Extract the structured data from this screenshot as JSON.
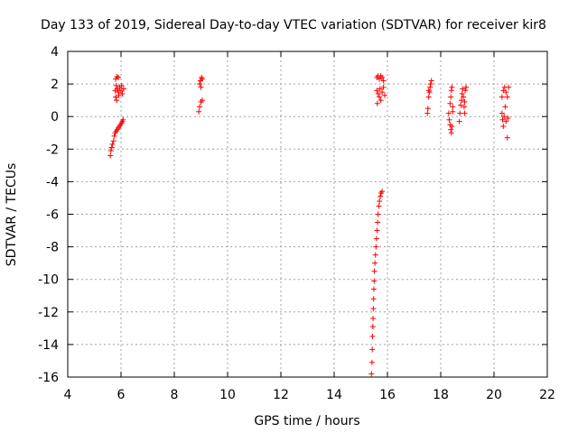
{
  "chart_data": {
    "type": "scatter",
    "title": "Day 133 of 2019, Sidereal Day-to-day VTEC variation (SDTVAR) for receiver kir8",
    "xlabel": "GPS time / hours",
    "ylabel": "SDTVAR / TECUs",
    "xlim": [
      4,
      22
    ],
    "ylim": [
      -16,
      4
    ],
    "xticks": [
      4,
      6,
      8,
      10,
      12,
      14,
      16,
      18,
      20,
      22
    ],
    "yticks": [
      -16,
      -14,
      -12,
      -10,
      -8,
      -6,
      -4,
      -2,
      0,
      2,
      4
    ],
    "grid": true,
    "marker": "+",
    "color": "#ff0000",
    "series": [
      {
        "name": "SDTVAR",
        "points": [
          [
            5.6,
            -2.4
          ],
          [
            5.62,
            -2.1
          ],
          [
            5.65,
            -1.9
          ],
          [
            5.68,
            -1.7
          ],
          [
            5.72,
            -1.5
          ],
          [
            5.75,
            -1.2
          ],
          [
            5.78,
            -1.0
          ],
          [
            5.82,
            -0.9
          ],
          [
            5.86,
            -0.8
          ],
          [
            5.9,
            -0.7
          ],
          [
            5.94,
            -0.6
          ],
          [
            5.98,
            -0.5
          ],
          [
            6.02,
            -0.4
          ],
          [
            6.05,
            -0.3
          ],
          [
            6.08,
            -0.2
          ],
          [
            5.8,
            2.3
          ],
          [
            5.85,
            2.45
          ],
          [
            5.9,
            2.4
          ],
          [
            5.82,
            1.9
          ],
          [
            5.86,
            1.7
          ],
          [
            5.9,
            1.5
          ],
          [
            5.8,
            1.2
          ],
          [
            5.83,
            1.0
          ],
          [
            5.95,
            1.8
          ],
          [
            6.0,
            1.6
          ],
          [
            6.05,
            1.4
          ],
          [
            6.1,
            1.7
          ],
          [
            5.78,
            1.6
          ],
          [
            5.92,
            1.3
          ],
          [
            6.02,
            1.9
          ],
          [
            8.95,
            2.0
          ],
          [
            8.98,
            2.2
          ],
          [
            9.02,
            2.4
          ],
          [
            9.05,
            2.3
          ],
          [
            9.0,
            1.8
          ],
          [
            8.92,
            0.3
          ],
          [
            8.95,
            0.6
          ],
          [
            9.0,
            0.9
          ],
          [
            9.05,
            1.0
          ],
          [
            15.4,
            -15.8
          ],
          [
            15.42,
            -15.1
          ],
          [
            15.43,
            -14.3
          ],
          [
            15.44,
            -13.5
          ],
          [
            15.45,
            -12.9
          ],
          [
            15.46,
            -12.4
          ],
          [
            15.47,
            -11.8
          ],
          [
            15.48,
            -11.2
          ],
          [
            15.49,
            -10.6
          ],
          [
            15.5,
            -10.1
          ],
          [
            15.51,
            -9.5
          ],
          [
            15.53,
            -9.0
          ],
          [
            15.55,
            -8.5
          ],
          [
            15.57,
            -8.0
          ],
          [
            15.59,
            -7.5
          ],
          [
            15.61,
            -7.0
          ],
          [
            15.63,
            -6.5
          ],
          [
            15.65,
            -6.0
          ],
          [
            15.68,
            -5.5
          ],
          [
            15.7,
            -5.2
          ],
          [
            15.73,
            -4.9
          ],
          [
            15.76,
            -4.7
          ],
          [
            15.8,
            -4.6
          ],
          [
            15.6,
            2.4
          ],
          [
            15.65,
            2.5
          ],
          [
            15.7,
            2.3
          ],
          [
            15.75,
            2.5
          ],
          [
            15.8,
            2.4
          ],
          [
            15.85,
            2.2
          ],
          [
            15.6,
            1.6
          ],
          [
            15.65,
            1.4
          ],
          [
            15.7,
            1.2
          ],
          [
            15.75,
            1.0
          ],
          [
            15.8,
            1.5
          ],
          [
            15.85,
            1.8
          ],
          [
            15.62,
            0.8
          ],
          [
            15.72,
            1.7
          ],
          [
            15.9,
            1.3
          ],
          [
            17.5,
            0.2
          ],
          [
            17.52,
            0.5
          ],
          [
            17.55,
            1.2
          ],
          [
            17.58,
            1.5
          ],
          [
            17.6,
            1.8
          ],
          [
            17.62,
            2.0
          ],
          [
            17.65,
            2.2
          ],
          [
            17.55,
            1.6
          ],
          [
            18.3,
            0.2
          ],
          [
            18.32,
            -0.2
          ],
          [
            18.35,
            -0.5
          ],
          [
            18.38,
            -0.8
          ],
          [
            18.4,
            -1.0
          ],
          [
            18.42,
            -0.6
          ],
          [
            18.45,
            0.6
          ],
          [
            18.38,
            1.2
          ],
          [
            18.4,
            1.6
          ],
          [
            18.42,
            1.8
          ],
          [
            18.35,
            0.8
          ],
          [
            18.45,
            0.3
          ],
          [
            18.7,
            -0.3
          ],
          [
            18.72,
            0.2
          ],
          [
            18.75,
            0.7
          ],
          [
            18.78,
            1.0
          ],
          [
            18.8,
            1.4
          ],
          [
            18.82,
            1.7
          ],
          [
            18.85,
            1.2
          ],
          [
            18.88,
            0.6
          ],
          [
            18.9,
            0.2
          ],
          [
            18.92,
            1.6
          ],
          [
            18.95,
            1.8
          ],
          [
            18.9,
            0.9
          ],
          [
            20.3,
            0.2
          ],
          [
            20.32,
            -0.2
          ],
          [
            20.35,
            -0.6
          ],
          [
            20.38,
            0.0
          ],
          [
            20.3,
            1.2
          ],
          [
            20.35,
            1.6
          ],
          [
            20.4,
            1.8
          ],
          [
            20.45,
            1.5
          ],
          [
            20.5,
            1.2
          ],
          [
            20.55,
            1.8
          ],
          [
            20.45,
            -0.3
          ],
          [
            20.5,
            -1.3
          ],
          [
            20.42,
            0.6
          ],
          [
            20.52,
            -0.1
          ]
        ]
      }
    ]
  }
}
